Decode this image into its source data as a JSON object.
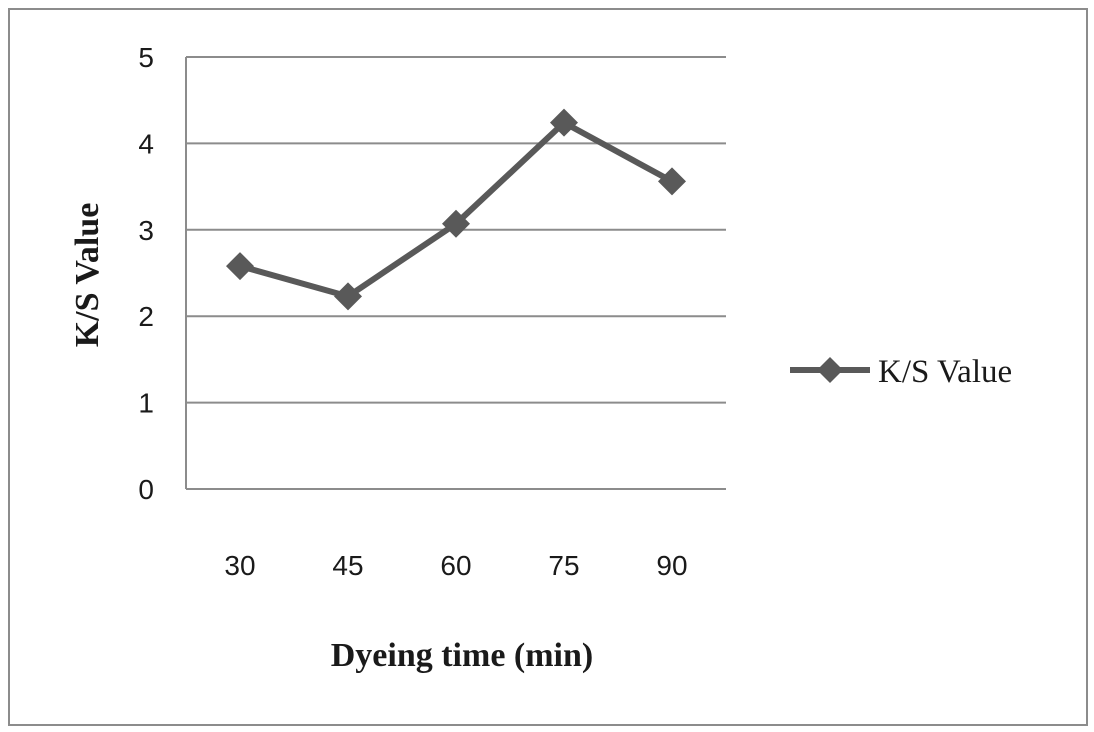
{
  "chart_data": {
    "type": "line",
    "title": "",
    "xlabel": "Dyeing time (min)",
    "ylabel": "K/S Value",
    "categories": [
      "30",
      "45",
      "60",
      "75",
      "90"
    ],
    "series": [
      {
        "name": "K/S Value",
        "values": [
          2.58,
          2.23,
          3.07,
          4.24,
          3.56
        ],
        "color": "#595959",
        "marker": "diamond"
      }
    ],
    "ylim": [
      0,
      5
    ],
    "yticks": [
      "0",
      "1",
      "2",
      "3",
      "4",
      "5"
    ],
    "grid": "horizontal",
    "legend_position": "right"
  }
}
